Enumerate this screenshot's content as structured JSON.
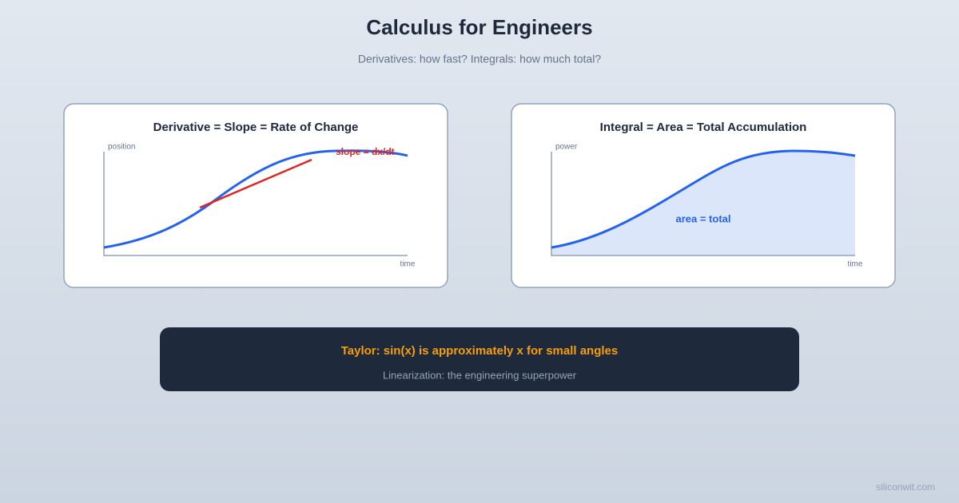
{
  "header": {
    "title": "Calculus for Engineers",
    "subtitle": "Derivatives: how fast? Integrals: how much total?"
  },
  "panels": [
    {
      "title": "Derivative = Slope = Rate of Change",
      "y_label": "position",
      "x_label": "time",
      "annotation": "slope = dx/dt"
    },
    {
      "title": "Integral = Area = Total Accumulation",
      "y_label": "power",
      "x_label": "time",
      "annotation": "area = total"
    }
  ],
  "callout": {
    "title": "Taylor: sin(x) is approximately x for small angles",
    "subtitle": "Linearization: the engineering superpower"
  },
  "footer": {
    "credit": "siliconwit.com"
  }
}
